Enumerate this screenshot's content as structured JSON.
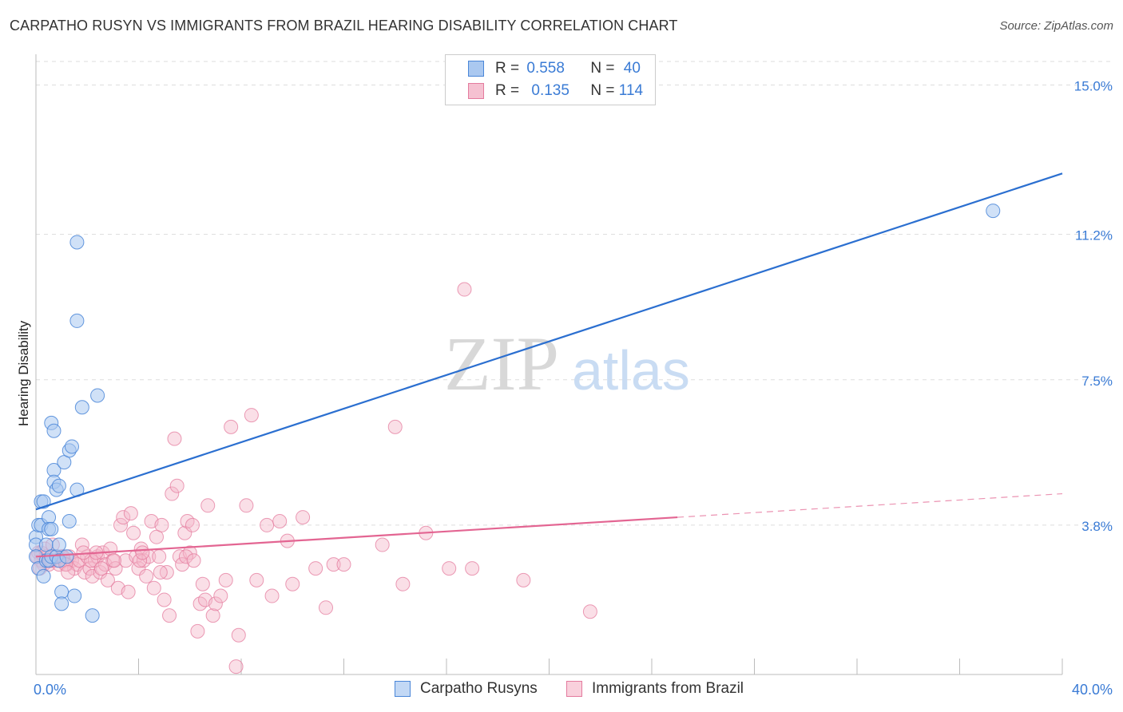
{
  "title": "CARPATHO RUSYN VS IMMIGRANTS FROM BRAZIL HEARING DISABILITY CORRELATION CHART",
  "source": "Source: ZipAtlas.com",
  "watermark": {
    "zip": "ZIP",
    "atlas": "atlas"
  },
  "legend": {
    "rows": [
      {
        "r_label": "R =",
        "r_value": "0.558",
        "n_label": "N =",
        "n_value": "40"
      },
      {
        "r_label": "R =",
        "r_value": "0.135",
        "n_label": "N =",
        "n_value": "114"
      }
    ]
  },
  "colors": {
    "blue_fill": "#aac8f0",
    "blue_stroke": "#4a86d8",
    "blue_line": "#2b6fd0",
    "pink_fill": "#f5b7c9",
    "pink_stroke": "#e47b9e",
    "pink_line": "#e36592",
    "tick_label": "#3a7bd5",
    "grid": "#dddddd"
  },
  "chart_data": {
    "type": "scatter",
    "title": "CARPATHO RUSYN VS IMMIGRANTS FROM BRAZIL HEARING DISABILITY CORRELATION CHART",
    "xlabel": "",
    "ylabel": "Hearing Disability",
    "xlim": [
      0,
      40
    ],
    "ylim": [
      0,
      15.6
    ],
    "x_tick_labels": [
      "0.0%",
      "40.0%"
    ],
    "y_ticks": [
      3.8,
      7.5,
      11.2,
      15.0
    ],
    "y_tick_labels": [
      "3.8%",
      "7.5%",
      "11.2%",
      "15.0%"
    ],
    "grid": "horizontal dashed",
    "legend_position": "top-center",
    "series": [
      {
        "name": "Carpatho Rusyns",
        "color": "blue",
        "trend": {
          "x": [
            0,
            40
          ],
          "y": [
            4.2,
            12.75
          ],
          "dashed_from": null
        },
        "points": [
          [
            0.0,
            3.5
          ],
          [
            0.0,
            3.3
          ],
          [
            0.0,
            3.0
          ],
          [
            0.1,
            3.8
          ],
          [
            0.1,
            2.7
          ],
          [
            0.2,
            4.4
          ],
          [
            0.2,
            3.8
          ],
          [
            0.3,
            4.4
          ],
          [
            0.3,
            2.5
          ],
          [
            0.4,
            3.3
          ],
          [
            0.4,
            2.9
          ],
          [
            0.5,
            4.0
          ],
          [
            0.5,
            3.7
          ],
          [
            0.5,
            2.9
          ],
          [
            0.6,
            6.4
          ],
          [
            0.6,
            3.7
          ],
          [
            0.6,
            3.0
          ],
          [
            0.7,
            6.2
          ],
          [
            0.7,
            5.2
          ],
          [
            0.7,
            4.9
          ],
          [
            0.8,
            4.7
          ],
          [
            0.8,
            3.0
          ],
          [
            0.9,
            4.8
          ],
          [
            0.9,
            3.3
          ],
          [
            0.9,
            2.9
          ],
          [
            1.0,
            2.1
          ],
          [
            1.0,
            1.8
          ],
          [
            1.1,
            5.4
          ],
          [
            1.2,
            3.0
          ],
          [
            1.3,
            3.9
          ],
          [
            1.3,
            5.7
          ],
          [
            1.4,
            5.8
          ],
          [
            1.5,
            2.0
          ],
          [
            1.6,
            11.0
          ],
          [
            1.6,
            9.0
          ],
          [
            1.6,
            4.7
          ],
          [
            1.8,
            6.8
          ],
          [
            2.2,
            1.5
          ],
          [
            2.4,
            7.1
          ],
          [
            37.3,
            11.8
          ]
        ]
      },
      {
        "name": "Immigrants from Brazil",
        "color": "pink",
        "trend": {
          "x": [
            0,
            40
          ],
          "y": [
            3.0,
            4.6
          ],
          "dashed_from": 25
        },
        "points": [
          [
            0.1,
            3.1
          ],
          [
            0.2,
            2.9
          ],
          [
            0.2,
            3.1
          ],
          [
            0.3,
            2.8
          ],
          [
            0.4,
            3.0
          ],
          [
            0.5,
            2.8
          ],
          [
            0.6,
            2.9
          ],
          [
            0.7,
            3.0
          ],
          [
            0.8,
            2.9
          ],
          [
            0.9,
            2.8
          ],
          [
            1.0,
            3.0
          ],
          [
            1.1,
            2.9
          ],
          [
            1.2,
            2.8
          ],
          [
            1.3,
            3.0
          ],
          [
            1.4,
            2.9
          ],
          [
            1.5,
            2.7
          ],
          [
            1.6,
            2.8
          ],
          [
            1.7,
            2.9
          ],
          [
            1.8,
            3.3
          ],
          [
            1.9,
            2.6
          ],
          [
            2.0,
            3.0
          ],
          [
            2.1,
            2.7
          ],
          [
            2.2,
            2.5
          ],
          [
            2.3,
            2.9
          ],
          [
            2.4,
            3.0
          ],
          [
            2.5,
            2.6
          ],
          [
            2.6,
            3.1
          ],
          [
            2.7,
            2.8
          ],
          [
            2.8,
            2.4
          ],
          [
            2.9,
            3.2
          ],
          [
            3.0,
            2.9
          ],
          [
            3.1,
            2.7
          ],
          [
            3.2,
            2.2
          ],
          [
            3.3,
            3.8
          ],
          [
            3.4,
            4.0
          ],
          [
            3.5,
            2.9
          ],
          [
            3.6,
            2.1
          ],
          [
            3.7,
            4.1
          ],
          [
            3.8,
            3.6
          ],
          [
            3.9,
            3.0
          ],
          [
            4.0,
            2.7
          ],
          [
            4.1,
            3.2
          ],
          [
            4.2,
            2.9
          ],
          [
            4.3,
            2.5
          ],
          [
            4.4,
            3.0
          ],
          [
            4.5,
            3.9
          ],
          [
            4.6,
            2.2
          ],
          [
            4.7,
            3.5
          ],
          [
            4.8,
            3.0
          ],
          [
            4.9,
            3.8
          ],
          [
            5.0,
            1.9
          ],
          [
            5.1,
            2.6
          ],
          [
            5.2,
            1.5
          ],
          [
            5.3,
            4.6
          ],
          [
            5.4,
            6.0
          ],
          [
            5.5,
            4.8
          ],
          [
            5.6,
            3.0
          ],
          [
            5.7,
            2.8
          ],
          [
            5.8,
            3.6
          ],
          [
            5.9,
            3.9
          ],
          [
            6.0,
            3.1
          ],
          [
            6.1,
            3.8
          ],
          [
            6.3,
            1.1
          ],
          [
            6.4,
            1.8
          ],
          [
            6.5,
            2.3
          ],
          [
            6.6,
            1.9
          ],
          [
            6.7,
            4.3
          ],
          [
            6.9,
            1.5
          ],
          [
            7.0,
            1.8
          ],
          [
            7.2,
            2.0
          ],
          [
            7.4,
            2.4
          ],
          [
            7.6,
            6.3
          ],
          [
            7.8,
            0.2
          ],
          [
            7.9,
            1.0
          ],
          [
            8.2,
            4.3
          ],
          [
            8.4,
            6.6
          ],
          [
            8.6,
            2.4
          ],
          [
            9.0,
            3.8
          ],
          [
            9.2,
            2.0
          ],
          [
            9.5,
            3.9
          ],
          [
            9.8,
            3.4
          ],
          [
            10.0,
            2.3
          ],
          [
            10.4,
            4.0
          ],
          [
            10.9,
            2.7
          ],
          [
            11.3,
            1.7
          ],
          [
            11.6,
            2.8
          ],
          [
            12.0,
            2.8
          ],
          [
            13.5,
            3.3
          ],
          [
            14.0,
            6.3
          ],
          [
            14.3,
            2.3
          ],
          [
            15.2,
            3.6
          ],
          [
            16.1,
            2.7
          ],
          [
            16.7,
            9.8
          ],
          [
            17.0,
            2.7
          ],
          [
            19.0,
            2.4
          ],
          [
            21.6,
            1.6
          ],
          [
            0.05,
            3.0
          ],
          [
            0.15,
            2.7
          ],
          [
            0.35,
            3.2
          ],
          [
            0.55,
            2.9
          ],
          [
            0.65,
            3.3
          ],
          [
            1.05,
            3.0
          ],
          [
            1.15,
            2.8
          ],
          [
            1.25,
            2.6
          ],
          [
            2.15,
            2.9
          ],
          [
            2.35,
            3.1
          ],
          [
            2.55,
            2.7
          ],
          [
            4.05,
            2.9
          ],
          [
            4.15,
            3.1
          ],
          [
            4.85,
            2.6
          ],
          [
            5.85,
            3.0
          ],
          [
            6.15,
            2.9
          ],
          [
            3.05,
            2.9
          ],
          [
            1.85,
            3.1
          ]
        ]
      }
    ]
  }
}
